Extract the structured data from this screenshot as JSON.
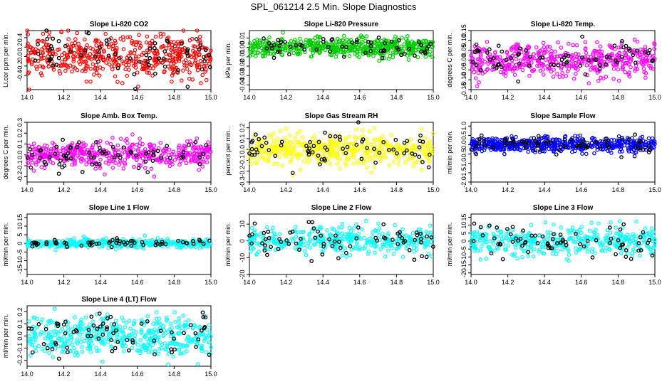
{
  "title": "SPL_061214  2.5 Min. Slope Diagnostics",
  "chart_data": [
    {
      "type": "scatter",
      "title": "Slope Li-820 CO2",
      "ylabel": "Li.cor ppm per min.",
      "color": "#ff0000",
      "xlim": [
        14.0,
        15.0
      ],
      "ylim": [
        -0.7,
        0.55
      ],
      "xticks": [
        14.0,
        14.2,
        14.4,
        14.6,
        14.8,
        15.0
      ],
      "yticks": [
        -0.4,
        -0.2,
        0.0,
        0.2,
        0.4
      ],
      "ytick_labels": [
        "-0.4",
        "-0.2",
        "0.0",
        "0.2",
        "0.4"
      ],
      "spread": 0.22,
      "center": 0.0,
      "n": 500,
      "dark_n": 70,
      "dark_color": "#000000"
    },
    {
      "type": "scatter",
      "title": "Slope Li-820 Pressure",
      "ylabel": "kPa per min.",
      "color": "#00cc00",
      "xlim": [
        14.0,
        15.0
      ],
      "ylim": [
        -0.045,
        0.018
      ],
      "xticks": [
        14.0,
        14.2,
        14.4,
        14.6,
        14.8,
        15.0
      ],
      "yticks": [
        -0.04,
        -0.03,
        -0.02,
        -0.01,
        0.0,
        0.01
      ],
      "ytick_labels": [
        "-0.04",
        "-0.03",
        "-0.02",
        "-0.01",
        "0.00",
        "0.01"
      ],
      "spread": 0.005,
      "center": 0.0,
      "n": 550,
      "dark_n": 60,
      "dark_color": "#000000"
    },
    {
      "type": "scatter",
      "title": "Slope Li-820 Temp.",
      "ylabel": "degrees C per min.",
      "color": "#ff00ff",
      "xlim": [
        14.0,
        15.0
      ],
      "ylim": [
        -0.15,
        0.15
      ],
      "xticks": [
        14.0,
        14.2,
        14.4,
        14.6,
        14.8,
        15.0
      ],
      "yticks": [
        -0.15,
        -0.1,
        -0.05,
        0.0,
        0.05,
        0.1,
        0.15
      ],
      "ytick_labels": [
        "-0.15",
        "-0.10",
        "-0.05",
        "0.00",
        "0.05",
        "0.10",
        "0.15"
      ],
      "spread": 0.04,
      "center": 0.0,
      "n": 480,
      "dark_n": 70,
      "dark_color": "#000000"
    },
    {
      "type": "scatter",
      "title": "Slope Amb. Box Temp.",
      "ylabel": "degrees C per min.",
      "color": "#ff00ff",
      "xlim": [
        14.0,
        15.0
      ],
      "ylim": [
        -0.25,
        0.3
      ],
      "xticks": [
        14.0,
        14.2,
        14.4,
        14.6,
        14.8,
        15.0
      ],
      "yticks": [
        -0.2,
        -0.1,
        0.0,
        0.1,
        0.2,
        0.3
      ],
      "ytick_labels": [
        "-0.2",
        "-0.1",
        "0.0",
        "0.1",
        "0.2",
        "0.3"
      ],
      "spread": 0.06,
      "center": 0.0,
      "n": 480,
      "dark_n": 70,
      "dark_color": "#000000"
    },
    {
      "type": "scatter",
      "title": "Slope Gas Stream RH",
      "ylabel": "percent per min.",
      "color": "#ffff00",
      "xlim": [
        14.0,
        15.0
      ],
      "ylim": [
        -0.3,
        0.25
      ],
      "xticks": [
        14.0,
        14.2,
        14.4,
        14.6,
        14.8,
        15.0
      ],
      "yticks": [
        -0.3,
        -0.2,
        -0.1,
        0.0,
        0.1,
        0.2
      ],
      "ytick_labels": [
        "-0.3",
        "-0.2",
        "-0.1",
        "0.0",
        "0.1",
        "0.2"
      ],
      "spread": 0.07,
      "center": 0.0,
      "n": 480,
      "dark_n": 70,
      "dark_color": "#000000"
    },
    {
      "type": "scatter",
      "title": "Slope Sample Flow",
      "ylabel": "ml/min per min.",
      "color": "#0000ff",
      "xlim": [
        14.0,
        15.0
      ],
      "ylim": [
        -2.0,
        1.2
      ],
      "xticks": [
        14.0,
        14.2,
        14.4,
        14.6,
        14.8,
        15.0
      ],
      "yticks": [
        -2.0,
        -1.5,
        -1.0,
        -0.5,
        0.0,
        0.5,
        1.0
      ],
      "ytick_labels": [
        "-2.0",
        "-1.5",
        "-1.0",
        "-0.5",
        "0.0",
        "0.5",
        "1.0"
      ],
      "spread": 0.2,
      "center": 0.0,
      "n": 550,
      "dark_n": 70,
      "dark_color": "#000000"
    },
    {
      "type": "scatter",
      "title": "Slope Line 1 Flow",
      "ylabel": "ml/min per min.",
      "color": "#00ffff",
      "xlim": [
        14.0,
        15.0
      ],
      "ylim": [
        -18,
        17
      ],
      "xticks": [
        14.0,
        14.2,
        14.4,
        14.6,
        14.8,
        15.0
      ],
      "yticks": [
        -15,
        -10,
        -5,
        0,
        5,
        10,
        15
      ],
      "ytick_labels": [
        "-15",
        "-10",
        "-5",
        "0",
        "5",
        "10",
        "15"
      ],
      "spread": 1.2,
      "center": 0.0,
      "n": 420,
      "dark_n": 60,
      "dark_color": "#000000"
    },
    {
      "type": "scatter",
      "title": "Slope Line 2 Flow",
      "ylabel": "ml/min per min.",
      "color": "#00ffff",
      "xlim": [
        14.0,
        15.0
      ],
      "ylim": [
        -20,
        16
      ],
      "xticks": [
        14.0,
        14.2,
        14.4,
        14.6,
        14.8,
        15.0
      ],
      "yticks": [
        -20,
        -10,
        0,
        10
      ],
      "ytick_labels": [
        "-20",
        "-10",
        "0",
        "10"
      ],
      "spread": 4.0,
      "center": 0.0,
      "n": 380,
      "dark_n": 70,
      "dark_color": "#000000"
    },
    {
      "type": "scatter",
      "title": "Slope Line 3 Flow",
      "ylabel": "ml/min per min.",
      "color": "#00ffff",
      "xlim": [
        14.0,
        15.0
      ],
      "ylim": [
        -21,
        17
      ],
      "xticks": [
        14.0,
        14.2,
        14.4,
        14.6,
        14.8,
        15.0
      ],
      "yticks": [
        -20,
        -15,
        -10,
        -5,
        0,
        5,
        10,
        15
      ],
      "ytick_labels": [
        "-20",
        "-15",
        "-10",
        "-5",
        "0",
        "5",
        "10",
        "15"
      ],
      "spread": 4.5,
      "center": 0.0,
      "n": 400,
      "dark_n": 70,
      "dark_color": "#000000"
    },
    {
      "type": "scatter",
      "title": "Slope Line 4 (LT) Flow",
      "ylabel": "ml/min per min.",
      "color": "#00ffff",
      "xlim": [
        14.0,
        15.0
      ],
      "ylim": [
        -0.25,
        0.25
      ],
      "xticks": [
        14.0,
        14.2,
        14.4,
        14.6,
        14.8,
        15.0
      ],
      "yticks": [
        -0.2,
        -0.1,
        0.0,
        0.1,
        0.2
      ],
      "ytick_labels": [
        "-0.2",
        "-0.1",
        "0.0",
        "0.1",
        "0.2"
      ],
      "spread": 0.08,
      "center": 0.0,
      "n": 480,
      "dark_n": 70,
      "dark_color": "#000000"
    }
  ]
}
